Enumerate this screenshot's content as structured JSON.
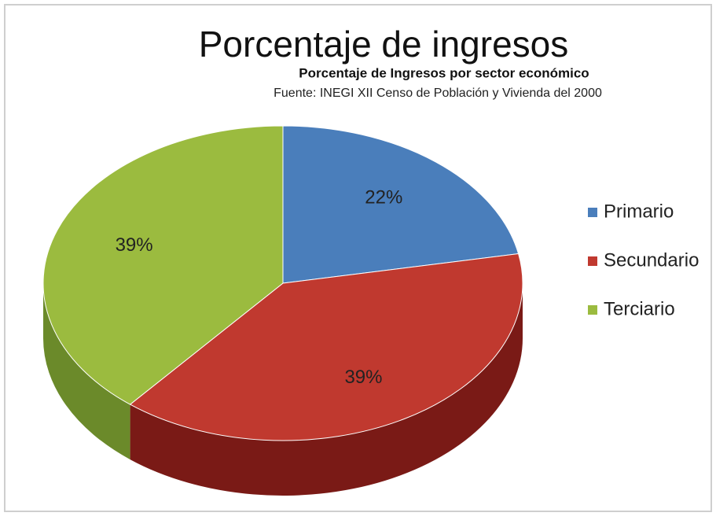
{
  "chart_data": {
    "type": "pie",
    "title": "Porcentaje de ingresos",
    "subtitle": "Porcentaje  de Ingresos por sector económico",
    "source": "Fuente: INEGI XII Censo de Población y Vivienda del 2000",
    "categories": [
      "Primario",
      "Secundario",
      "Terciario"
    ],
    "values": [
      22,
      39,
      39
    ],
    "value_labels": [
      "22%",
      "39%",
      "39%"
    ],
    "colors": [
      "#4a7ebb",
      "#c0392f",
      "#9bbb3f"
    ],
    "side_colors": [
      "#2f5a8f",
      "#7a1a16",
      "#6b8a2a"
    ],
    "legend": "right"
  }
}
